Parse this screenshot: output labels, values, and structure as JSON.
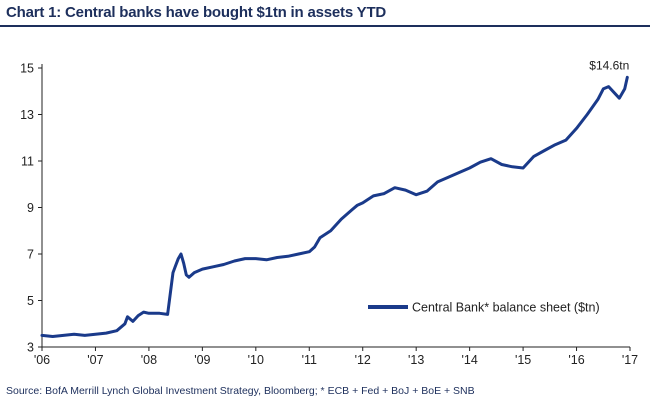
{
  "header": {
    "title": "Chart 1:  Central banks have bought $1tn in assets YTD"
  },
  "footer": {
    "source": "Source: BofA Merrill Lynch Global Investment Strategy, Bloomberg; * ECB + Fed + BoJ + BoE + SNB"
  },
  "colors": {
    "line": "#1a3a8a",
    "title": "#1d2f5c"
  },
  "chart_data": {
    "type": "line",
    "title": "Chart 1:  Central banks have bought $1tn in assets YTD",
    "xlabel": "",
    "ylabel": "",
    "xlim": [
      2006.0,
      2017.0
    ],
    "ylim": [
      3,
      15
    ],
    "x_ticks": [
      2006,
      2007,
      2008,
      2009,
      2010,
      2011,
      2012,
      2013,
      2014,
      2015,
      2016,
      2017
    ],
    "x_tick_labels": [
      "'06",
      "'07",
      "'08",
      "'09",
      "'10",
      "'11",
      "'12",
      "'13",
      "'14",
      "'15",
      "'16",
      "'17"
    ],
    "y_ticks": [
      3,
      5,
      7,
      9,
      11,
      13,
      15
    ],
    "y_tick_labels": [
      "3",
      "5",
      "7",
      "9",
      "11",
      "13",
      "15"
    ],
    "grid": false,
    "legend_position": "lower-right",
    "end_label": "$14.6tn",
    "series": [
      {
        "name": "Central Bank* balance sheet ($tn)",
        "x": [
          2006.0,
          2006.2,
          2006.4,
          2006.6,
          2006.8,
          2007.0,
          2007.2,
          2007.4,
          2007.55,
          2007.6,
          2007.7,
          2007.8,
          2007.9,
          2008.0,
          2008.2,
          2008.35,
          2008.4,
          2008.45,
          2008.5,
          2008.55,
          2008.6,
          2008.65,
          2008.7,
          2008.75,
          2008.85,
          2009.0,
          2009.2,
          2009.4,
          2009.6,
          2009.8,
          2010.0,
          2010.2,
          2010.4,
          2010.6,
          2010.8,
          2011.0,
          2011.1,
          2011.2,
          2011.4,
          2011.6,
          2011.8,
          2011.9,
          2012.0,
          2012.2,
          2012.4,
          2012.6,
          2012.8,
          2013.0,
          2013.2,
          2013.4,
          2013.6,
          2013.8,
          2014.0,
          2014.2,
          2014.4,
          2014.6,
          2014.8,
          2015.0,
          2015.2,
          2015.4,
          2015.6,
          2015.8,
          2016.0,
          2016.2,
          2016.4,
          2016.5,
          2016.6,
          2016.8,
          2016.9,
          2016.95
        ],
        "values": [
          3.5,
          3.45,
          3.5,
          3.55,
          3.5,
          3.55,
          3.6,
          3.7,
          4.0,
          4.3,
          4.1,
          4.35,
          4.5,
          4.45,
          4.45,
          4.4,
          5.3,
          6.2,
          6.5,
          6.8,
          7.0,
          6.6,
          6.1,
          6.0,
          6.2,
          6.35,
          6.45,
          6.55,
          6.7,
          6.8,
          6.8,
          6.75,
          6.85,
          6.9,
          7.0,
          7.1,
          7.3,
          7.7,
          8.0,
          8.5,
          8.9,
          9.1,
          9.2,
          9.5,
          9.6,
          9.85,
          9.75,
          9.55,
          9.7,
          10.1,
          10.3,
          10.5,
          10.7,
          10.95,
          11.1,
          10.85,
          10.75,
          10.7,
          11.2,
          11.45,
          11.7,
          11.9,
          12.4,
          13.0,
          13.65,
          14.1,
          14.2,
          13.7,
          14.1,
          14.6
        ]
      }
    ]
  }
}
